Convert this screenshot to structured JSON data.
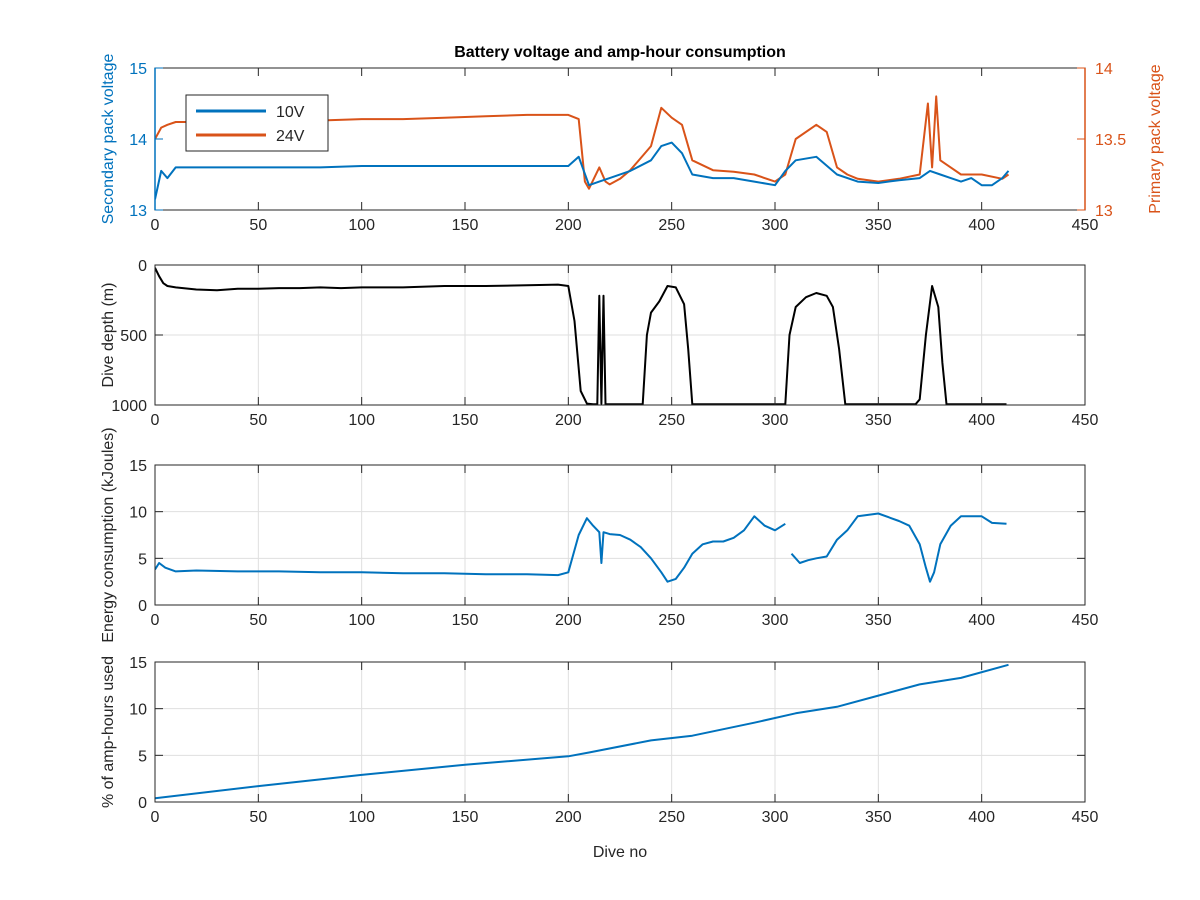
{
  "figure": {
    "title": "Battery voltage and amp-hour consumption"
  },
  "colors": {
    "blue": "#0072BD",
    "orange": "#D95319",
    "black": "#000000",
    "grid": "#DFDFDF",
    "axis": "#262626"
  },
  "chart_data": [
    {
      "type": "line",
      "title": "Battery voltage and amp-hour consumption",
      "xlabel": "",
      "ylabel": "Secondary pack voltage",
      "ylabel_right": "Primary pack voltage",
      "xlim": [
        0,
        450
      ],
      "ylim": [
        13,
        15
      ],
      "ylim_right": [
        13,
        14
      ],
      "xticks": [
        "0",
        "50",
        "100",
        "150",
        "200",
        "250",
        "300",
        "350",
        "400",
        "450"
      ],
      "yticks": [
        "13",
        "14",
        "15"
      ],
      "yticks_right": [
        "13",
        "13.5",
        "14"
      ],
      "grid": false,
      "legend": {
        "placement": "top-left",
        "entries": [
          "10V",
          "24V"
        ]
      },
      "series": [
        {
          "name": "10V",
          "axis": "left",
          "x": [
            0,
            3,
            6,
            10,
            20,
            40,
            60,
            80,
            100,
            120,
            140,
            160,
            180,
            200,
            205,
            210,
            215,
            220,
            230,
            240,
            245,
            250,
            255,
            260,
            270,
            280,
            290,
            300,
            305,
            310,
            320,
            330,
            340,
            350,
            360,
            370,
            375,
            380,
            385,
            390,
            395,
            400,
            405,
            410,
            413
          ],
          "y": [
            13.15,
            13.55,
            13.45,
            13.6,
            13.6,
            13.6,
            13.6,
            13.6,
            13.62,
            13.62,
            13.62,
            13.62,
            13.62,
            13.62,
            13.75,
            13.35,
            13.4,
            13.45,
            13.55,
            13.7,
            13.9,
            13.95,
            13.8,
            13.5,
            13.45,
            13.45,
            13.4,
            13.35,
            13.55,
            13.7,
            13.75,
            13.5,
            13.4,
            13.38,
            13.42,
            13.45,
            13.55,
            13.5,
            13.45,
            13.4,
            13.45,
            13.35,
            13.35,
            13.45,
            13.55
          ]
        },
        {
          "name": "24V",
          "axis": "right",
          "x": [
            0,
            3,
            6,
            10,
            20,
            40,
            60,
            80,
            100,
            120,
            140,
            160,
            180,
            200,
            205,
            208,
            210,
            215,
            218,
            220,
            225,
            230,
            240,
            245,
            250,
            255,
            260,
            270,
            280,
            290,
            300,
            305,
            310,
            320,
            325,
            330,
            335,
            340,
            350,
            360,
            370,
            374,
            376,
            378,
            380,
            385,
            390,
            400,
            410,
            413
          ],
          "y": [
            13.5,
            13.58,
            13.6,
            13.62,
            13.62,
            13.63,
            13.63,
            13.63,
            13.64,
            13.64,
            13.65,
            13.66,
            13.67,
            13.67,
            13.64,
            13.2,
            13.15,
            13.3,
            13.2,
            13.18,
            13.22,
            13.28,
            13.45,
            13.72,
            13.65,
            13.6,
            13.35,
            13.28,
            13.27,
            13.25,
            13.2,
            13.25,
            13.5,
            13.6,
            13.55,
            13.3,
            13.25,
            13.22,
            13.2,
            13.22,
            13.25,
            13.75,
            13.3,
            13.8,
            13.35,
            13.3,
            13.25,
            13.25,
            13.22,
            13.25
          ]
        }
      ]
    },
    {
      "type": "line",
      "title": "",
      "xlabel": "",
      "ylabel": "Dive depth (m)",
      "xlim": [
        0,
        450
      ],
      "ylim": [
        0,
        1000
      ],
      "y_reversed": true,
      "xticks": [
        "0",
        "50",
        "100",
        "150",
        "200",
        "250",
        "300",
        "350",
        "400",
        "450"
      ],
      "yticks": [
        "0",
        "500",
        "1000"
      ],
      "grid": true,
      "series": [
        {
          "axis": "left",
          "x": [
            0,
            2,
            4,
            6,
            10,
            20,
            30,
            40,
            50,
            60,
            70,
            80,
            90,
            100,
            120,
            140,
            160,
            180,
            195,
            200,
            203,
            206,
            209,
            212,
            214,
            215,
            216,
            217,
            218,
            220,
            225,
            230,
            236,
            238,
            240,
            244,
            248,
            252,
            256,
            258,
            260,
            262,
            270,
            280,
            290,
            300,
            305,
            307,
            310,
            315,
            320,
            325,
            328,
            331,
            334,
            340,
            350,
            360,
            365,
            368,
            370,
            373,
            376,
            379,
            381,
            383,
            385,
            390,
            400,
            412
          ],
          "y": [
            20,
            80,
            130,
            150,
            160,
            175,
            180,
            170,
            170,
            165,
            165,
            160,
            165,
            160,
            160,
            150,
            150,
            145,
            140,
            150,
            400,
            900,
            990,
            995,
            995,
            220,
            990,
            220,
            995,
            995,
            995,
            995,
            995,
            500,
            340,
            260,
            150,
            160,
            280,
            600,
            995,
            995,
            995,
            995,
            995,
            995,
            995,
            500,
            300,
            230,
            200,
            220,
            300,
            600,
            995,
            995,
            995,
            995,
            995,
            995,
            960,
            500,
            150,
            300,
            700,
            995,
            995,
            995,
            995,
            995
          ]
        }
      ]
    },
    {
      "type": "line",
      "title": "",
      "xlabel": "",
      "ylabel": "Energy consumption (kJoules)",
      "xlim": [
        0,
        450
      ],
      "ylim": [
        0,
        15
      ],
      "xticks": [
        "0",
        "50",
        "100",
        "150",
        "200",
        "250",
        "300",
        "350",
        "400",
        "450"
      ],
      "yticks": [
        "0",
        "5",
        "10",
        "15"
      ],
      "grid": true,
      "series": [
        {
          "axis": "left",
          "segments": [
            {
              "x": [
                0,
                2,
                5,
                10,
                20,
                40,
                60,
                80,
                100,
                120,
                140,
                160,
                180,
                195,
                200,
                205,
                209,
                212,
                215,
                216,
                217,
                220,
                225,
                230,
                235,
                240,
                245,
                248,
                252,
                256,
                260,
                265,
                270,
                275,
                280,
                285,
                290,
                295,
                300,
                305
              ],
              "y": [
                3.8,
                4.5,
                4.0,
                3.6,
                3.7,
                3.6,
                3.6,
                3.5,
                3.5,
                3.4,
                3.4,
                3.3,
                3.3,
                3.2,
                3.5,
                7.5,
                9.3,
                8.5,
                7.8,
                4.5,
                7.8,
                7.6,
                7.5,
                7.0,
                6.2,
                5.0,
                3.5,
                2.5,
                2.8,
                4.0,
                5.5,
                6.5,
                6.8,
                6.8,
                7.2,
                8.0,
                9.5,
                8.5,
                8.0,
                8.7
              ]
            },
            {
              "x": [
                308,
                312,
                316,
                320,
                325,
                330,
                335,
                340,
                350,
                360,
                365,
                370,
                373,
                375,
                377,
                380,
                385,
                390,
                400,
                405,
                412
              ],
              "y": [
                5.5,
                4.5,
                4.8,
                5.0,
                5.2,
                7.0,
                8.0,
                9.5,
                9.8,
                9.0,
                8.5,
                6.5,
                4.0,
                2.5,
                3.5,
                6.5,
                8.5,
                9.5,
                9.5,
                8.8,
                8.7
              ]
            }
          ]
        }
      ]
    },
    {
      "type": "line",
      "title": "",
      "xlabel": "Dive no",
      "ylabel": "% of amp-hours used",
      "xlim": [
        0,
        450
      ],
      "ylim": [
        0,
        15
      ],
      "xticks": [
        "0",
        "50",
        "100",
        "150",
        "200",
        "250",
        "300",
        "350",
        "400",
        "450"
      ],
      "yticks": [
        "0",
        "5",
        "10",
        "15"
      ],
      "grid": true,
      "series": [
        {
          "axis": "left",
          "x": [
            0,
            50,
            100,
            150,
            200,
            210,
            240,
            260,
            290,
            310,
            330,
            350,
            370,
            390,
            413
          ],
          "y": [
            0.4,
            1.7,
            2.9,
            4.0,
            4.9,
            5.3,
            6.6,
            7.1,
            8.5,
            9.5,
            10.2,
            11.4,
            12.6,
            13.3,
            14.7
          ]
        }
      ]
    }
  ]
}
